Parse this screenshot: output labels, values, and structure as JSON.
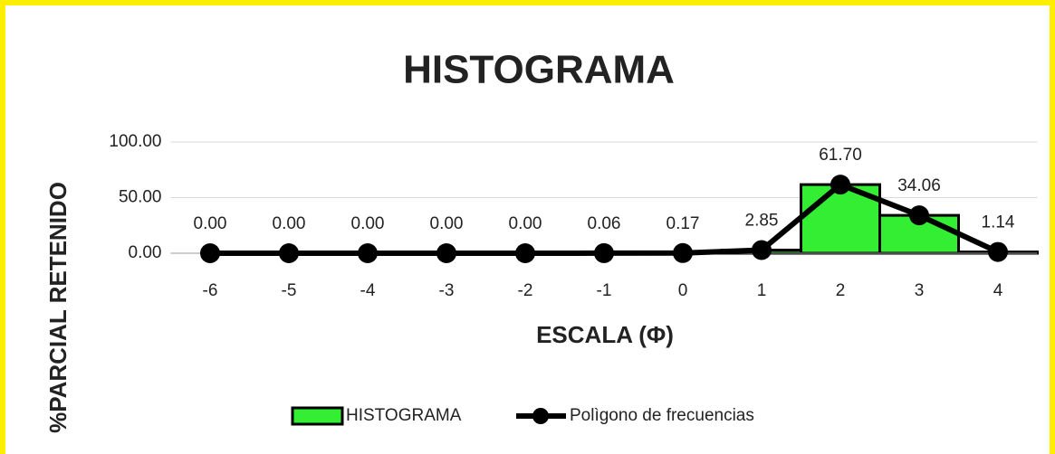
{
  "chart_data": {
    "type": "combo",
    "title": "HISTOGRAMA",
    "x_label": "ESCALA (Φ)",
    "y_label": "%PARCIAL RETENIDO",
    "categories": [
      "-6",
      "-5",
      "-4",
      "-3",
      "-2",
      "-1",
      "0",
      "1",
      "2",
      "3",
      "4"
    ],
    "series": [
      {
        "name": "HISTOGRAMA",
        "type": "bar",
        "color": "#33ee33",
        "values": [
          0,
          0,
          0,
          0,
          0,
          0.06,
          0.17,
          2.85,
          61.7,
          34.06,
          1.14
        ]
      },
      {
        "name": "Polìgono de frecuencias",
        "type": "line",
        "color": "#000000",
        "values": [
          0,
          0,
          0,
          0,
          0,
          0.06,
          0.17,
          2.85,
          61.7,
          34.06,
          1.14
        ],
        "value_labels": [
          "0.00",
          "0.00",
          "0.00",
          "0.00",
          "0.00",
          "0.06",
          "0.17",
          "2.85",
          "61.70",
          "34.06",
          "1.14"
        ]
      }
    ],
    "ylim": [
      0,
      100
    ],
    "yticks": [
      {
        "value": 0,
        "label": "0.00"
      },
      {
        "value": 50,
        "label": "50.00"
      },
      {
        "value": 100,
        "label": "100.00"
      }
    ],
    "grid": true,
    "legend": "bottom"
  }
}
